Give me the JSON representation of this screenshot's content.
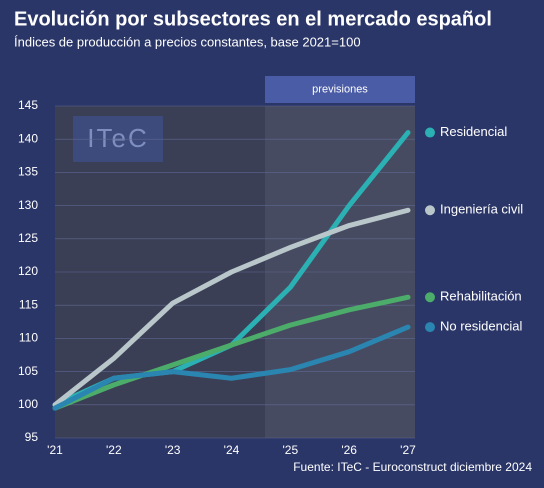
{
  "chart_data": {
    "type": "line",
    "title": "Evolución por subsectores en el mercado español",
    "subtitle": "Índices de producción a precios constantes, base 2021=100",
    "source": "Fuente: ITeC - Euroconstruct diciembre 2024",
    "logo": "ITeC",
    "forecast_label": "previsiones",
    "categories": [
      "'21",
      "'22",
      "'23",
      "'24",
      "'25",
      "'26",
      "'27"
    ],
    "series": [
      {
        "name": "Residencial",
        "color": "#2bb0b3",
        "values": [
          100,
          104,
          105,
          109,
          117.7,
          130,
          141
        ]
      },
      {
        "name": "Ingeniería civil",
        "color": "#b9c7cb",
        "values": [
          100,
          107,
          115.3,
          120,
          123.7,
          127,
          129.3
        ]
      },
      {
        "name": "Rehabilitación",
        "color": "#4cac6a",
        "values": [
          99.5,
          103,
          106,
          109,
          112,
          114.3,
          116.2
        ]
      },
      {
        "name": "No residencial",
        "color": "#2a85b0",
        "values": [
          99.5,
          104,
          105,
          104,
          105.3,
          108,
          111.7
        ]
      }
    ],
    "ylim": [
      95,
      145
    ],
    "yticks": [
      95,
      100,
      105,
      110,
      115,
      120,
      125,
      130,
      135,
      140,
      145
    ],
    "grid": true
  }
}
